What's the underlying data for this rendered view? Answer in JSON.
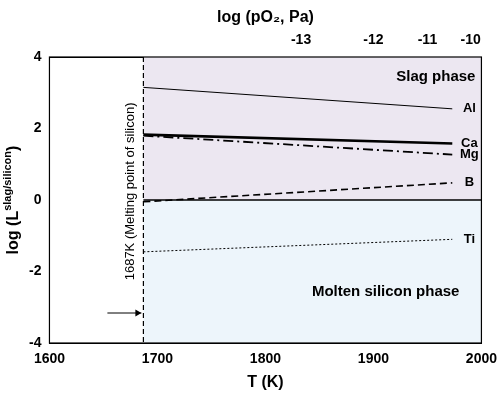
{
  "chart_data": {
    "type": "line",
    "x_label": "T (K)",
    "y_label": "log (Lslag/silicon)",
    "y_label_superscript": "slag/silicon",
    "x2_label": "log (pO₂, Pa)",
    "xlim": [
      1600,
      2000
    ],
    "xticks": [
      1600,
      1700,
      1800,
      1900,
      2000
    ],
    "ylim": [
      -4,
      4
    ],
    "yticks": [
      -4,
      -2,
      0,
      2,
      4
    ],
    "x2ticks": [
      {
        "value": 1833,
        "label": "-13"
      },
      {
        "value": 1900,
        "label": "-12"
      },
      {
        "value": 1950,
        "label": "-11"
      },
      {
        "value": 1990,
        "label": "-10"
      }
    ],
    "grid": false,
    "series": [
      {
        "name": "Al",
        "color": "#000000",
        "line_style": "solid",
        "x": [
          1687,
          1973
        ],
        "values": [
          3.15,
          2.55
        ]
      },
      {
        "name": "Ca",
        "color": "#000000",
        "line_style": "thick",
        "x": [
          1687,
          1973
        ],
        "values": [
          1.83,
          1.58
        ]
      },
      {
        "name": "Mg",
        "color": "#000000",
        "line_style": "dashdot",
        "x": [
          1687,
          1973
        ],
        "values": [
          1.8,
          1.27
        ]
      },
      {
        "name": "B",
        "color": "#000000",
        "line_style": "dashed",
        "x": [
          1687,
          1973
        ],
        "values": [
          -0.05,
          0.48
        ]
      },
      {
        "name": "Ti",
        "color": "#000000",
        "line_style": "dotted",
        "x": [
          1687,
          1973
        ],
        "values": [
          -1.45,
          -1.1
        ]
      }
    ],
    "reference_lines": {
      "x": 1687,
      "y": 0
    },
    "regions": [
      {
        "label": "Slag phase",
        "color": "#ece7f1"
      },
      {
        "label": "Molten silicon phase",
        "color": "#edf5fb"
      }
    ],
    "annotations": [
      "1687K (Melting point of silicon)"
    ]
  }
}
